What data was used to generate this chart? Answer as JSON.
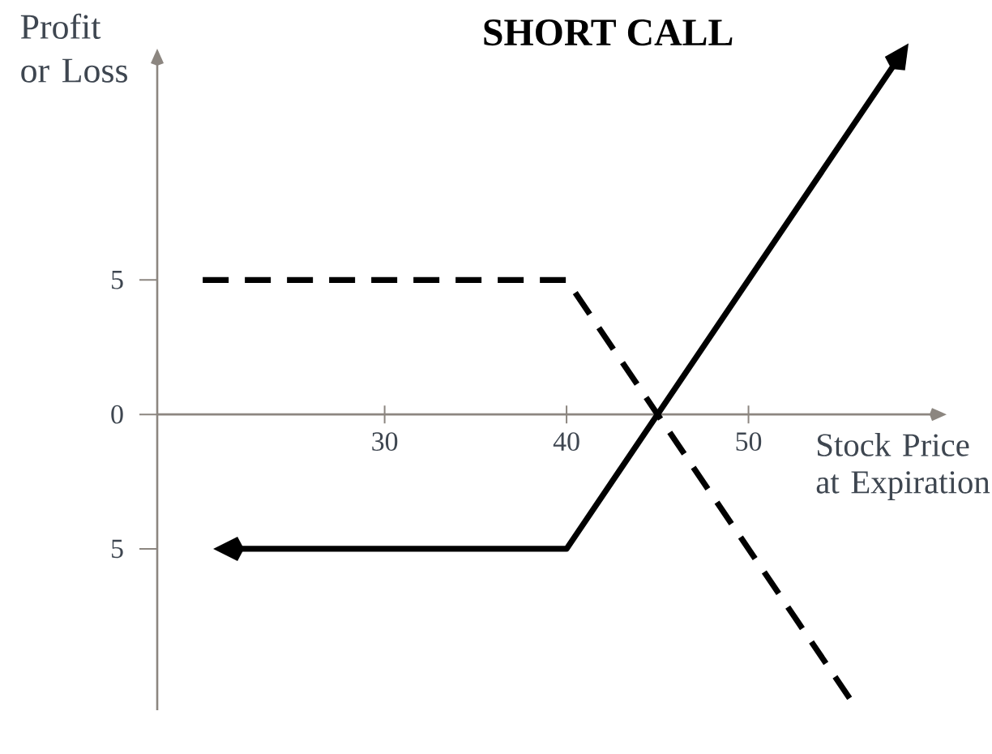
{
  "chart_data": {
    "type": "line",
    "title": "SHORT CALL",
    "xlabel": "Stock Price at Expiration",
    "ylabel": "Profit or Loss",
    "xlim": [
      17.5,
      60
    ],
    "ylim": [
      -11,
      13
    ],
    "xticks": [
      30,
      40,
      50
    ],
    "yticks": [
      {
        "value": 5,
        "label": "5"
      },
      {
        "value": 0,
        "label": "0"
      },
      {
        "value": -5,
        "label": "5"
      }
    ],
    "series": [
      {
        "color": "#000000",
        "line_style": "solid",
        "x": [
          22,
          40,
          58
        ],
        "values": [
          -5,
          -5,
          13
        ]
      },
      {
        "color": "#000000",
        "line_style": "dashed",
        "x": [
          20,
          40,
          56
        ],
        "values": [
          5,
          5,
          -11
        ]
      }
    ]
  }
}
